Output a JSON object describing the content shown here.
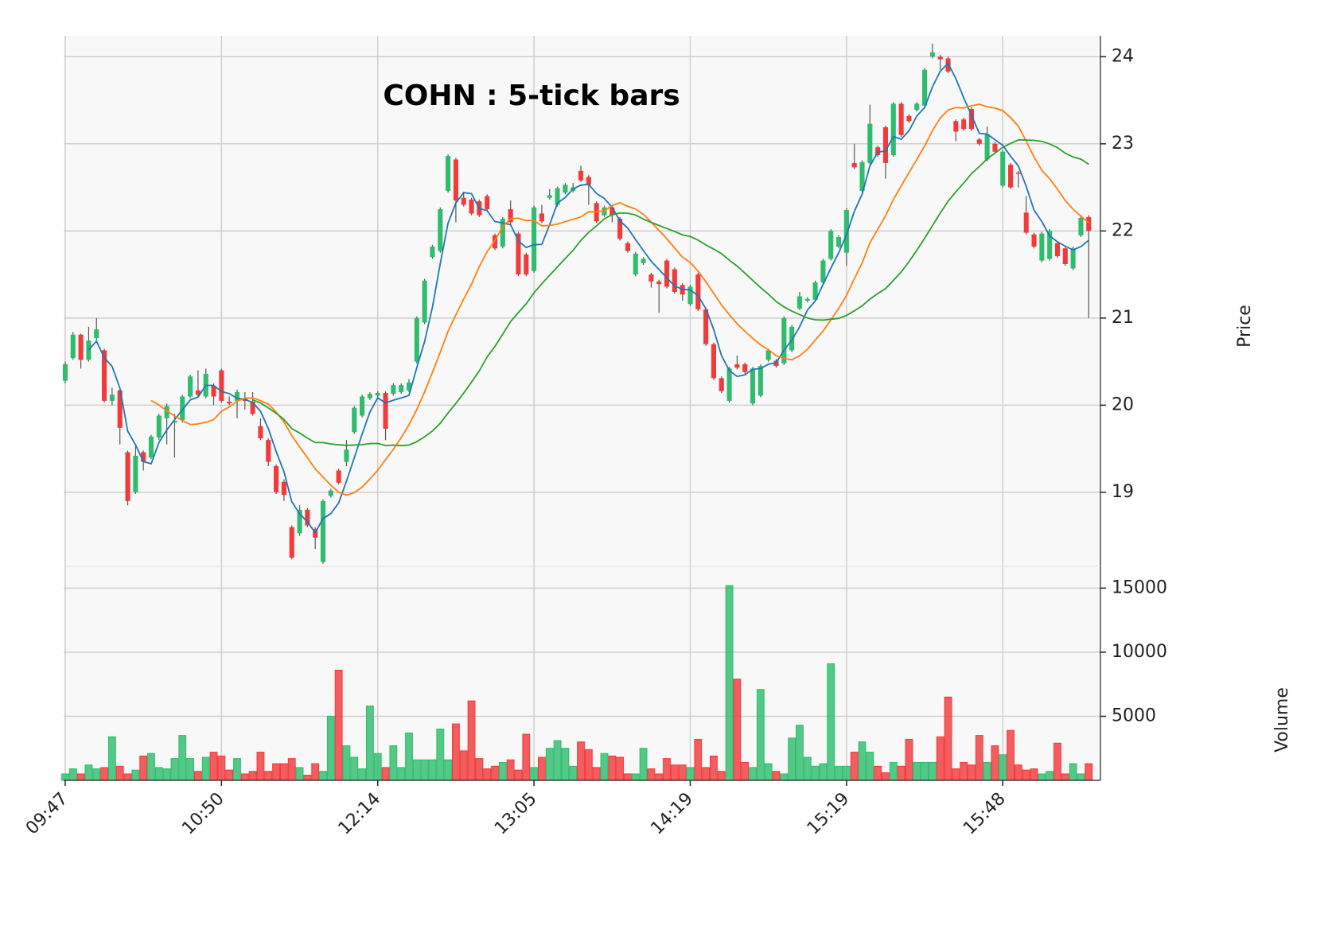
{
  "chart_data": {
    "type": "candlestick",
    "title": "COHN : 5-tick bars",
    "ylabel": "Price",
    "y2label": "Volume",
    "xlim": [
      -0.2,
      132.5
    ],
    "xticks": [
      {
        "value": 0,
        "label": "09:47"
      },
      {
        "value": 20,
        "label": "10:50"
      },
      {
        "value": 40,
        "label": "12:14"
      },
      {
        "value": 60,
        "label": "13:05"
      },
      {
        "value": 80,
        "label": "14:19"
      },
      {
        "value": 100,
        "label": "15:19"
      },
      {
        "value": 120,
        "label": "15:48"
      }
    ],
    "ylim": [
      18.15,
      24.24
    ],
    "yticks": [
      19,
      20,
      21,
      22,
      23,
      24
    ],
    "y2lim": [
      0,
      16700
    ],
    "y2ticks": [
      5000,
      10000,
      15000
    ],
    "up_color": "#2ebd6e",
    "down_color": "#f23a3a",
    "grid": true,
    "moving_averages": [
      {
        "period": 4,
        "color": "#1f77b4"
      },
      {
        "period": 12,
        "color": "#ff7f0e"
      },
      {
        "period": 25,
        "color": "#2ca02c"
      }
    ],
    "open": [
      20.28,
      20.54,
      20.81,
      20.52,
      20.77,
      20.63,
      20.05,
      20.17,
      19.46,
      19.0,
      19.46,
      19.4,
      19.63,
      19.85,
      19.8,
      19.83,
      20.1,
      20.17,
      20.1,
      20.22,
      20.4,
      20.04,
      20.05,
      20.08,
      20.04,
      19.76,
      19.6,
      19.3,
      19.12,
      18.6,
      18.53,
      18.8,
      18.58,
      18.2,
      18.96,
      19.25,
      19.35,
      19.69,
      19.88,
      20.08,
      20.11,
      20.14,
      20.13,
      20.15,
      20.17,
      20.5,
      20.95,
      21.7,
      21.77,
      22.46,
      22.82,
      22.38,
      22.36,
      22.34,
      22.4,
      21.95,
      21.82,
      22.25,
      21.97,
      21.73,
      21.54,
      22.2,
      22.38,
      22.3,
      22.44,
      22.46,
      22.69,
      22.62,
      22.32,
      22.18,
      22.27,
      22.14,
      21.86,
      21.5,
      21.63,
      21.5,
      21.42,
      21.66,
      21.56,
      21.38,
      21.16,
      21.5,
      21.1,
      20.7,
      20.31,
      20.05,
      20.47,
      20.47,
      20.02,
      20.11,
      20.52,
      20.51,
      20.48,
      20.63,
      21.11,
      21.2,
      21.21,
      21.41,
      21.68,
      21.82,
      21.75,
      22.78,
      22.46,
      22.78,
      22.96,
      23.19,
      22.87,
      23.46,
      23.32,
      23.39,
      23.44,
      24.0,
      24.0,
      23.98,
      23.26,
      23.28,
      23.4,
      23.05,
      22.82,
      23.0,
      22.52,
      22.76,
      22.67,
      22.21,
      21.96,
      21.66,
      21.68,
      21.86,
      21.8,
      21.57,
      21.95,
      22.16
    ],
    "high": [
      20.5,
      20.84,
      20.82,
      20.9,
      21.0,
      20.65,
      20.2,
      20.2,
      19.48,
      19.55,
      19.48,
      19.66,
      19.9,
      20.02,
      19.9,
      20.12,
      20.35,
      20.4,
      20.42,
      20.25,
      20.42,
      20.1,
      20.18,
      20.15,
      20.15,
      19.85,
      19.62,
      19.32,
      19.15,
      18.62,
      18.85,
      18.82,
      18.6,
      18.92,
      19.04,
      19.27,
      19.6,
      19.99,
      20.12,
      20.15,
      20.16,
      20.16,
      20.25,
      20.25,
      20.3,
      21.02,
      21.45,
      21.84,
      22.27,
      22.88,
      22.84,
      22.45,
      22.38,
      22.36,
      22.42,
      21.97,
      22.16,
      22.35,
      21.99,
      21.75,
      22.29,
      22.3,
      22.48,
      22.51,
      22.55,
      22.55,
      22.75,
      22.64,
      22.34,
      22.29,
      22.29,
      22.16,
      21.88,
      21.76,
      21.7,
      21.52,
      21.44,
      21.68,
      21.58,
      21.4,
      21.38,
      21.52,
      21.12,
      20.72,
      20.33,
      20.44,
      20.57,
      20.49,
      20.44,
      20.47,
      20.65,
      20.53,
      21.02,
      20.92,
      21.3,
      21.24,
      21.43,
      21.68,
      22.02,
      21.95,
      22.26,
      23.0,
      22.81,
      23.45,
      22.98,
      23.21,
      23.48,
      23.48,
      23.34,
      23.48,
      23.87,
      24.15,
      24.02,
      24.0,
      23.28,
      23.3,
      23.42,
      23.07,
      23.2,
      23.02,
      22.93,
      22.78,
      22.69,
      22.4,
      21.98,
      21.99,
      22.02,
      21.88,
      21.82,
      21.82,
      22.17,
      22.18
    ],
    "low": [
      20.25,
      20.52,
      20.42,
      20.5,
      20.75,
      20.03,
      20.0,
      19.55,
      18.85,
      18.98,
      19.25,
      19.38,
      19.6,
      19.55,
      19.4,
      19.8,
      20.08,
      20.1,
      20.08,
      20.0,
      20.03,
      20.0,
      19.85,
      19.95,
      19.88,
      19.6,
      19.3,
      18.98,
      18.9,
      18.23,
      18.5,
      18.6,
      18.35,
      18.18,
      18.94,
      19.09,
      19.3,
      19.67,
      19.86,
      20.06,
      20.09,
      19.6,
      20.11,
      20.13,
      20.15,
      20.48,
      20.93,
      21.68,
      21.75,
      22.44,
      22.1,
      22.28,
      22.18,
      22.16,
      22.23,
      21.78,
      21.8,
      22.08,
      21.48,
      21.48,
      21.52,
      22.09,
      22.36,
      22.28,
      22.42,
      22.44,
      22.56,
      22.3,
      22.09,
      22.16,
      22.1,
      21.89,
      21.75,
      21.48,
      21.61,
      21.35,
      21.06,
      21.34,
      21.28,
      21.2,
      21.14,
      21.08,
      20.68,
      20.29,
      20.14,
      20.03,
      20.41,
      20.36,
      20.0,
      20.09,
      20.5,
      20.43,
      20.46,
      20.61,
      21.09,
      21.18,
      21.19,
      21.39,
      21.66,
      21.8,
      21.6,
      22.71,
      22.44,
      22.76,
      22.85,
      22.6,
      22.85,
      23.08,
      23.24,
      23.37,
      23.42,
      23.98,
      23.85,
      23.81,
      23.03,
      23.15,
      23.15,
      22.98,
      22.8,
      22.89,
      22.5,
      22.48,
      22.5,
      21.96,
      21.8,
      21.64,
      21.66,
      21.69,
      21.6,
      21.55,
      21.93,
      21.0
    ],
    "close": [
      20.47,
      20.81,
      20.52,
      20.74,
      20.87,
      20.05,
      20.12,
      19.74,
      18.9,
      19.42,
      19.35,
      19.64,
      19.88,
      19.99,
      19.82,
      20.1,
      20.33,
      20.12,
      20.36,
      20.1,
      20.05,
      20.02,
      20.15,
      20.05,
      19.9,
      19.62,
      19.35,
      19.0,
      18.97,
      18.25,
      18.8,
      18.62,
      18.48,
      18.9,
      19.02,
      19.11,
      19.49,
      19.97,
      20.1,
      20.13,
      20.14,
      19.73,
      20.23,
      20.23,
      20.26,
      21.0,
      21.43,
      21.82,
      22.25,
      22.86,
      22.35,
      22.3,
      22.2,
      22.18,
      22.25,
      21.8,
      22.14,
      22.1,
      21.5,
      21.5,
      22.27,
      22.11,
      22.41,
      22.49,
      22.53,
      22.5,
      22.58,
      22.53,
      22.11,
      22.27,
      22.18,
      21.91,
      21.77,
      21.74,
      21.68,
      21.42,
      21.39,
      21.36,
      21.3,
      21.27,
      21.36,
      21.1,
      20.7,
      20.31,
      20.16,
      20.42,
      20.43,
      20.38,
      20.42,
      20.45,
      20.63,
      20.45,
      21.0,
      20.9,
      21.25,
      21.22,
      21.41,
      21.66,
      22.0,
      21.93,
      22.24,
      22.73,
      22.79,
      23.23,
      22.87,
      22.78,
      23.46,
      23.1,
      23.26,
      23.46,
      23.85,
      24.05,
      23.97,
      23.83,
      23.14,
      23.17,
      23.17,
      23.0,
      23.11,
      22.91,
      22.91,
      22.5,
      22.66,
      21.98,
      21.82,
      21.97,
      22.0,
      21.71,
      21.62,
      21.8,
      22.15,
      22.0
    ],
    "volume": [
      500,
      900,
      500,
      1200,
      900,
      1000,
      3400,
      1100,
      500,
      800,
      1900,
      2100,
      1000,
      900,
      1700,
      3500,
      1700,
      700,
      1800,
      2200,
      1900,
      800,
      1700,
      500,
      700,
      2200,
      700,
      1300,
      1300,
      1700,
      1000,
      400,
      1300,
      700,
      5000,
      8600,
      2700,
      1800,
      900,
      5800,
      2100,
      1000,
      2700,
      1000,
      3700,
      1600,
      1600,
      1600,
      4000,
      1600,
      4400,
      2300,
      6200,
      1700,
      900,
      1100,
      1400,
      1600,
      800,
      3600,
      1000,
      1800,
      2500,
      3100,
      2500,
      1100,
      3000,
      2400,
      1000,
      2100,
      1900,
      1800,
      500,
      500,
      2500,
      900,
      500,
      1700,
      1200,
      1200,
      1000,
      3200,
      1000,
      1900,
      700,
      15200,
      7900,
      1400,
      1000,
      7100,
      1300,
      700,
      500,
      3300,
      4300,
      1800,
      1100,
      1300,
      9100,
      1100,
      1100,
      2200,
      3000,
      2200,
      1100,
      600,
      1400,
      1100,
      3200,
      1400,
      1400,
      1400,
      3400,
      6500,
      900,
      1400,
      1200,
      3500,
      1400,
      2700,
      2000,
      3900,
      1200,
      800,
      900,
      500,
      700,
      2900,
      500,
      1300,
      500,
      1300
    ]
  }
}
